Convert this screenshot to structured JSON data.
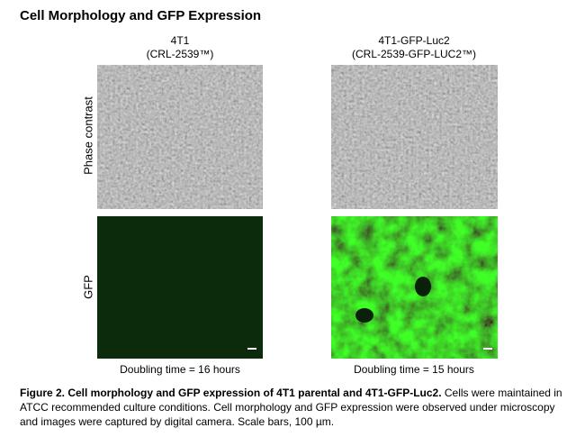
{
  "header": {
    "title": "Cell Morphology and GFP Expression"
  },
  "columns": [
    {
      "name": "4T1",
      "catalog": "(CRL-2539™)",
      "doubling": "Doubling time = 16 hours"
    },
    {
      "name": "4T1-GFP-Luc2",
      "catalog": "(CRL-2539-GFP-LUC2™)",
      "doubling": "Doubling time = 15 hours"
    }
  ],
  "rows": [
    "Phase contrast",
    "GFP"
  ],
  "caption": {
    "bold": "Figure 2. Cell morphology and GFP expression of 4T1 parental and 4T1-GFP-Luc2.",
    "text": " Cells were maintained in ATCC recommended culture conditions. Cell morphology and GFP expression were observed under microscopy and images were captured by digital camera. Scale bars, 100 µm."
  }
}
